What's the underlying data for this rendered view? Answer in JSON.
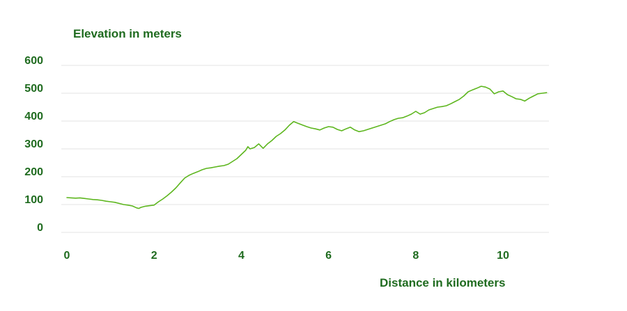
{
  "chart_data": {
    "type": "line",
    "title": "",
    "ylabel": "Elevation in meters",
    "xlabel": "Distance in kilometers",
    "xlim": [
      -0.1,
      11.05
    ],
    "ylim": [
      -10,
      600
    ],
    "yticks": [
      0,
      100,
      200,
      300,
      400,
      500,
      600
    ],
    "xticks": [
      0,
      2,
      4,
      6,
      8,
      10
    ],
    "grid": true,
    "legend": "none",
    "line_color": "#5db61e",
    "label_color": "#1f6b1f",
    "grid_color": "#e3e3e3",
    "series": [
      {
        "values": [
          [
            0,
            125
          ],
          [
            0.1,
            124
          ],
          [
            0.2,
            123
          ],
          [
            0.3,
            124
          ],
          [
            0.4,
            122
          ],
          [
            0.5,
            120
          ],
          [
            0.6,
            118
          ],
          [
            0.7,
            117
          ],
          [
            0.8,
            115
          ],
          [
            0.9,
            112
          ],
          [
            1.0,
            110
          ],
          [
            1.1,
            108
          ],
          [
            1.2,
            104
          ],
          [
            1.3,
            100
          ],
          [
            1.4,
            98
          ],
          [
            1.5,
            95
          ],
          [
            1.6,
            88
          ],
          [
            1.65,
            86
          ],
          [
            1.7,
            90
          ],
          [
            1.8,
            94
          ],
          [
            1.9,
            96
          ],
          [
            2.0,
            98
          ],
          [
            2.1,
            110
          ],
          [
            2.2,
            120
          ],
          [
            2.3,
            132
          ],
          [
            2.4,
            145
          ],
          [
            2.5,
            160
          ],
          [
            2.6,
            178
          ],
          [
            2.7,
            195
          ],
          [
            2.8,
            205
          ],
          [
            2.9,
            212
          ],
          [
            3.0,
            218
          ],
          [
            3.1,
            225
          ],
          [
            3.2,
            230
          ],
          [
            3.3,
            232
          ],
          [
            3.4,
            235
          ],
          [
            3.5,
            238
          ],
          [
            3.6,
            240
          ],
          [
            3.7,
            245
          ],
          [
            3.8,
            255
          ],
          [
            3.9,
            265
          ],
          [
            4.0,
            280
          ],
          [
            4.1,
            295
          ],
          [
            4.15,
            308
          ],
          [
            4.2,
            300
          ],
          [
            4.3,
            305
          ],
          [
            4.4,
            318
          ],
          [
            4.5,
            302
          ],
          [
            4.6,
            318
          ],
          [
            4.7,
            330
          ],
          [
            4.8,
            345
          ],
          [
            4.9,
            355
          ],
          [
            5.0,
            368
          ],
          [
            5.1,
            385
          ],
          [
            5.2,
            398
          ],
          [
            5.3,
            392
          ],
          [
            5.4,
            386
          ],
          [
            5.5,
            380
          ],
          [
            5.6,
            375
          ],
          [
            5.7,
            372
          ],
          [
            5.8,
            368
          ],
          [
            5.9,
            375
          ],
          [
            6.0,
            380
          ],
          [
            6.1,
            378
          ],
          [
            6.2,
            370
          ],
          [
            6.3,
            365
          ],
          [
            6.4,
            372
          ],
          [
            6.5,
            378
          ],
          [
            6.6,
            368
          ],
          [
            6.7,
            362
          ],
          [
            6.8,
            365
          ],
          [
            6.9,
            370
          ],
          [
            7.0,
            375
          ],
          [
            7.1,
            380
          ],
          [
            7.2,
            385
          ],
          [
            7.3,
            390
          ],
          [
            7.4,
            398
          ],
          [
            7.5,
            405
          ],
          [
            7.6,
            410
          ],
          [
            7.7,
            412
          ],
          [
            7.8,
            418
          ],
          [
            7.9,
            425
          ],
          [
            8.0,
            435
          ],
          [
            8.1,
            425
          ],
          [
            8.2,
            430
          ],
          [
            8.3,
            440
          ],
          [
            8.4,
            445
          ],
          [
            8.5,
            450
          ],
          [
            8.6,
            452
          ],
          [
            8.7,
            455
          ],
          [
            8.8,
            462
          ],
          [
            8.9,
            470
          ],
          [
            9.0,
            478
          ],
          [
            9.1,
            490
          ],
          [
            9.2,
            505
          ],
          [
            9.3,
            512
          ],
          [
            9.4,
            518
          ],
          [
            9.5,
            525
          ],
          [
            9.6,
            522
          ],
          [
            9.7,
            515
          ],
          [
            9.8,
            498
          ],
          [
            9.9,
            505
          ],
          [
            10.0,
            508
          ],
          [
            10.1,
            495
          ],
          [
            10.2,
            488
          ],
          [
            10.3,
            480
          ],
          [
            10.4,
            478
          ],
          [
            10.5,
            472
          ],
          [
            10.6,
            482
          ],
          [
            10.7,
            490
          ],
          [
            10.8,
            498
          ],
          [
            10.9,
            500
          ],
          [
            11.0,
            502
          ]
        ]
      }
    ]
  }
}
